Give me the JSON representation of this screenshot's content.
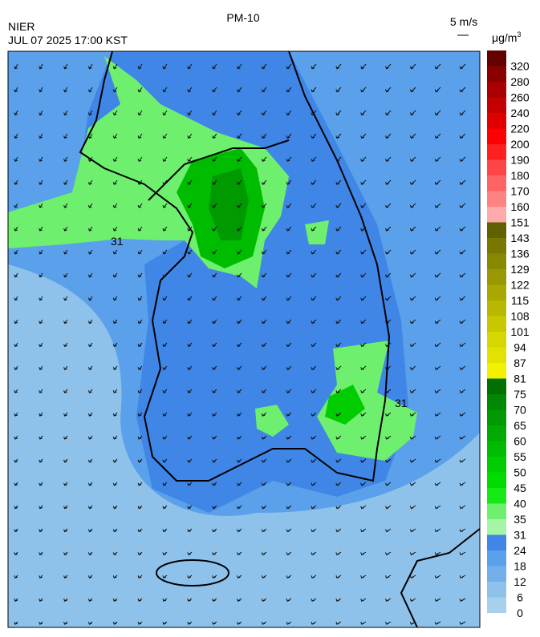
{
  "header": {
    "title": "PM-10",
    "source": "NIER",
    "datetime": "JUL 07 2025 17:00 KST",
    "wind_scale": "5 m/s"
  },
  "legend": {
    "unit": "μg/m",
    "unit_sup": "3",
    "ticks": [
      0,
      6,
      12,
      18,
      24,
      31,
      35,
      40,
      45,
      50,
      55,
      60,
      65,
      70,
      75,
      81,
      87,
      94,
      101,
      108,
      115,
      122,
      129,
      136,
      143,
      151,
      160,
      170,
      180,
      190,
      200,
      220,
      240,
      260,
      280,
      320
    ],
    "colors": [
      "#a6d0ec",
      "#8ec2ea",
      "#72b0ea",
      "#5aa0ea",
      "#3f86e6",
      "#a6f5a6",
      "#6ef06e",
      "#16ea16",
      "#00dc00",
      "#00cc00",
      "#00bc00",
      "#00aa00",
      "#009a00",
      "#008800",
      "#007000",
      "#f2f200",
      "#e2e200",
      "#d6d600",
      "#c8c800",
      "#b8b800",
      "#a8a800",
      "#989800",
      "#888800",
      "#787800",
      "#606000",
      "#ffaaaa",
      "#ff8282",
      "#ff6464",
      "#ff4646",
      "#ff2020",
      "#ff0000",
      "#e00000",
      "#c40000",
      "#a80000",
      "#8a0000",
      "#640000"
    ]
  },
  "map": {
    "contour_labels": [
      "31",
      "31"
    ]
  }
}
